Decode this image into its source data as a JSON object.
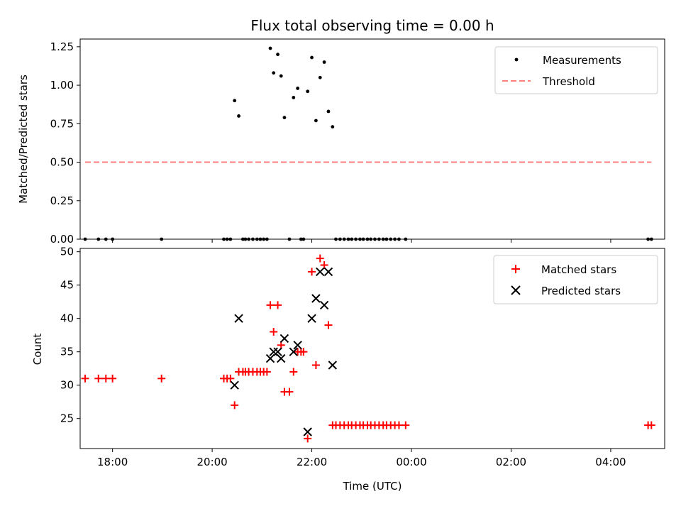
{
  "chart_data": [
    {
      "type": "scatter",
      "title": "Flux total observing time = 0.00 h",
      "xlabel": "",
      "ylabel": "Matched/Predicted stars",
      "xlim": [
        "17:21",
        "05:05"
      ],
      "ylim": [
        0,
        1.3
      ],
      "yticks": [
        "0.00",
        "0.25",
        "0.50",
        "0.75",
        "1.00",
        "1.25"
      ],
      "grid": false,
      "legend": "top-right",
      "series": [
        {
          "name": "Measurements",
          "kind": "dots",
          "color": "#000000",
          "points": [
            [
              "17:27",
              0
            ],
            [
              "17:43",
              0
            ],
            [
              "17:52",
              0
            ],
            [
              "18:00",
              0
            ],
            [
              "18:59",
              0
            ],
            [
              "20:14",
              0
            ],
            [
              "20:18",
              0
            ],
            [
              "20:22",
              0
            ],
            [
              "20:27",
              0.9
            ],
            [
              "20:32",
              0.8
            ],
            [
              "20:37",
              0
            ],
            [
              "20:40",
              0
            ],
            [
              "20:44",
              0
            ],
            [
              "20:49",
              0
            ],
            [
              "20:54",
              0
            ],
            [
              "20:58",
              0
            ],
            [
              "21:02",
              0
            ],
            [
              "21:06",
              0
            ],
            [
              "21:10",
              1.24
            ],
            [
              "21:14",
              1.08
            ],
            [
              "21:19",
              1.2
            ],
            [
              "21:23",
              1.06
            ],
            [
              "21:27",
              0.79
            ],
            [
              "21:33",
              0
            ],
            [
              "21:38",
              0.92
            ],
            [
              "21:43",
              0.98
            ],
            [
              "21:47",
              0
            ],
            [
              "21:50",
              0
            ],
            [
              "21:55",
              0.96
            ],
            [
              "22:00",
              1.18
            ],
            [
              "22:05",
              0.77
            ],
            [
              "22:10",
              1.05
            ],
            [
              "22:15",
              1.15
            ],
            [
              "22:20",
              0.83
            ],
            [
              "22:25",
              0.73
            ],
            [
              "22:29",
              0
            ],
            [
              "22:34",
              0
            ],
            [
              "22:39",
              0
            ],
            [
              "22:44",
              0
            ],
            [
              "22:48",
              0
            ],
            [
              "22:53",
              0
            ],
            [
              "22:58",
              0
            ],
            [
              "23:02",
              0
            ],
            [
              "23:07",
              0
            ],
            [
              "23:11",
              0
            ],
            [
              "23:16",
              0
            ],
            [
              "23:21",
              0
            ],
            [
              "23:26",
              0
            ],
            [
              "23:30",
              0
            ],
            [
              "23:35",
              0
            ],
            [
              "23:40",
              0
            ],
            [
              "23:45",
              0
            ],
            [
              "23:53",
              0
            ],
            [
              "04:45",
              0
            ],
            [
              "04:49",
              0
            ]
          ]
        },
        {
          "name": "Threshold",
          "kind": "dashed-line",
          "color": "#ff7f7f",
          "points": [
            [
              "17:27",
              0.5
            ],
            [
              "04:49",
              0.5
            ]
          ]
        }
      ]
    },
    {
      "type": "scatter",
      "title": "",
      "xlabel": "Time (UTC)",
      "ylabel": "Count",
      "xlim": [
        "17:21",
        "05:05"
      ],
      "ylim": [
        20.5,
        50.5
      ],
      "xticks": [
        "18:00",
        "20:00",
        "22:00",
        "00:00",
        "02:00",
        "04:00"
      ],
      "yticks": [
        "25",
        "30",
        "35",
        "40",
        "45",
        "50"
      ],
      "grid": false,
      "legend": "top-right",
      "series": [
        {
          "name": "Matched stars",
          "kind": "plus",
          "color": "#ff0000",
          "points": [
            [
              "17:27",
              31
            ],
            [
              "17:43",
              31
            ],
            [
              "17:52",
              31
            ],
            [
              "18:00",
              31
            ],
            [
              "18:59",
              31
            ],
            [
              "20:14",
              31
            ],
            [
              "20:18",
              31
            ],
            [
              "20:22",
              31
            ],
            [
              "20:27",
              27
            ],
            [
              "20:32",
              32
            ],
            [
              "20:37",
              32
            ],
            [
              "20:40",
              32
            ],
            [
              "20:44",
              32
            ],
            [
              "20:49",
              32
            ],
            [
              "20:54",
              32
            ],
            [
              "20:58",
              32
            ],
            [
              "21:02",
              32
            ],
            [
              "21:06",
              32
            ],
            [
              "21:10",
              42
            ],
            [
              "21:14",
              38
            ],
            [
              "21:19",
              42
            ],
            [
              "21:23",
              36
            ],
            [
              "21:27",
              29
            ],
            [
              "21:33",
              29
            ],
            [
              "21:38",
              32
            ],
            [
              "21:43",
              35
            ],
            [
              "21:47",
              35
            ],
            [
              "21:50",
              35
            ],
            [
              "21:55",
              22
            ],
            [
              "22:00",
              47
            ],
            [
              "22:05",
              33
            ],
            [
              "22:10",
              49
            ],
            [
              "22:15",
              48
            ],
            [
              "22:20",
              39
            ],
            [
              "22:25",
              24
            ],
            [
              "22:29",
              24
            ],
            [
              "22:34",
              24
            ],
            [
              "22:39",
              24
            ],
            [
              "22:44",
              24
            ],
            [
              "22:48",
              24
            ],
            [
              "22:53",
              24
            ],
            [
              "22:58",
              24
            ],
            [
              "23:02",
              24
            ],
            [
              "23:07",
              24
            ],
            [
              "23:11",
              24
            ],
            [
              "23:16",
              24
            ],
            [
              "23:21",
              24
            ],
            [
              "23:26",
              24
            ],
            [
              "23:30",
              24
            ],
            [
              "23:35",
              24
            ],
            [
              "23:40",
              24
            ],
            [
              "23:45",
              24
            ],
            [
              "23:53",
              24
            ],
            [
              "04:45",
              24
            ],
            [
              "04:49",
              24
            ]
          ]
        },
        {
          "name": "Predicted stars",
          "kind": "x",
          "color": "#000000",
          "points": [
            [
              "20:27",
              30
            ],
            [
              "20:32",
              40
            ],
            [
              "21:10",
              34
            ],
            [
              "21:14",
              35
            ],
            [
              "21:19",
              35
            ],
            [
              "21:23",
              34
            ],
            [
              "21:27",
              37
            ],
            [
              "21:38",
              35
            ],
            [
              "21:43",
              36
            ],
            [
              "21:55",
              23
            ],
            [
              "22:00",
              40
            ],
            [
              "22:05",
              43
            ],
            [
              "22:10",
              47
            ],
            [
              "22:15",
              42
            ],
            [
              "22:20",
              47
            ],
            [
              "22:25",
              33
            ]
          ]
        }
      ]
    }
  ]
}
